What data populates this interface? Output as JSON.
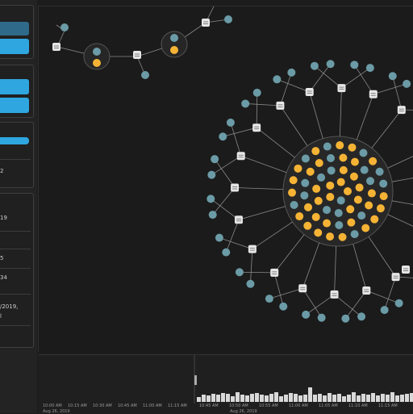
{
  "sidebar": {
    "texts": [
      "2",
      "19",
      "5",
      "34",
      "/2019,",
      "l"
    ],
    "progress_bar_fill": 1.0
  },
  "timeline": {
    "left_ticks": [
      "10:00 AM",
      "10:15 AM",
      "10:30 AM",
      "10:45 AM",
      "11:00 AM",
      "11:15 AM"
    ],
    "right_ticks": [
      "10:45 AM",
      "10:50 AM",
      "10:55 AM",
      "11:00 AM",
      "11:05 AM",
      "11:10 AM",
      "11:15 AM"
    ],
    "bottom_labels": [
      "Aug 26, 2019",
      "Aug 26, 2019"
    ]
  },
  "colors": {
    "node_teal": "#6b9ba6",
    "node_orange": "#f5b335",
    "link_node": "#e6e6e6",
    "accent_blue": "#2fa6df"
  }
}
